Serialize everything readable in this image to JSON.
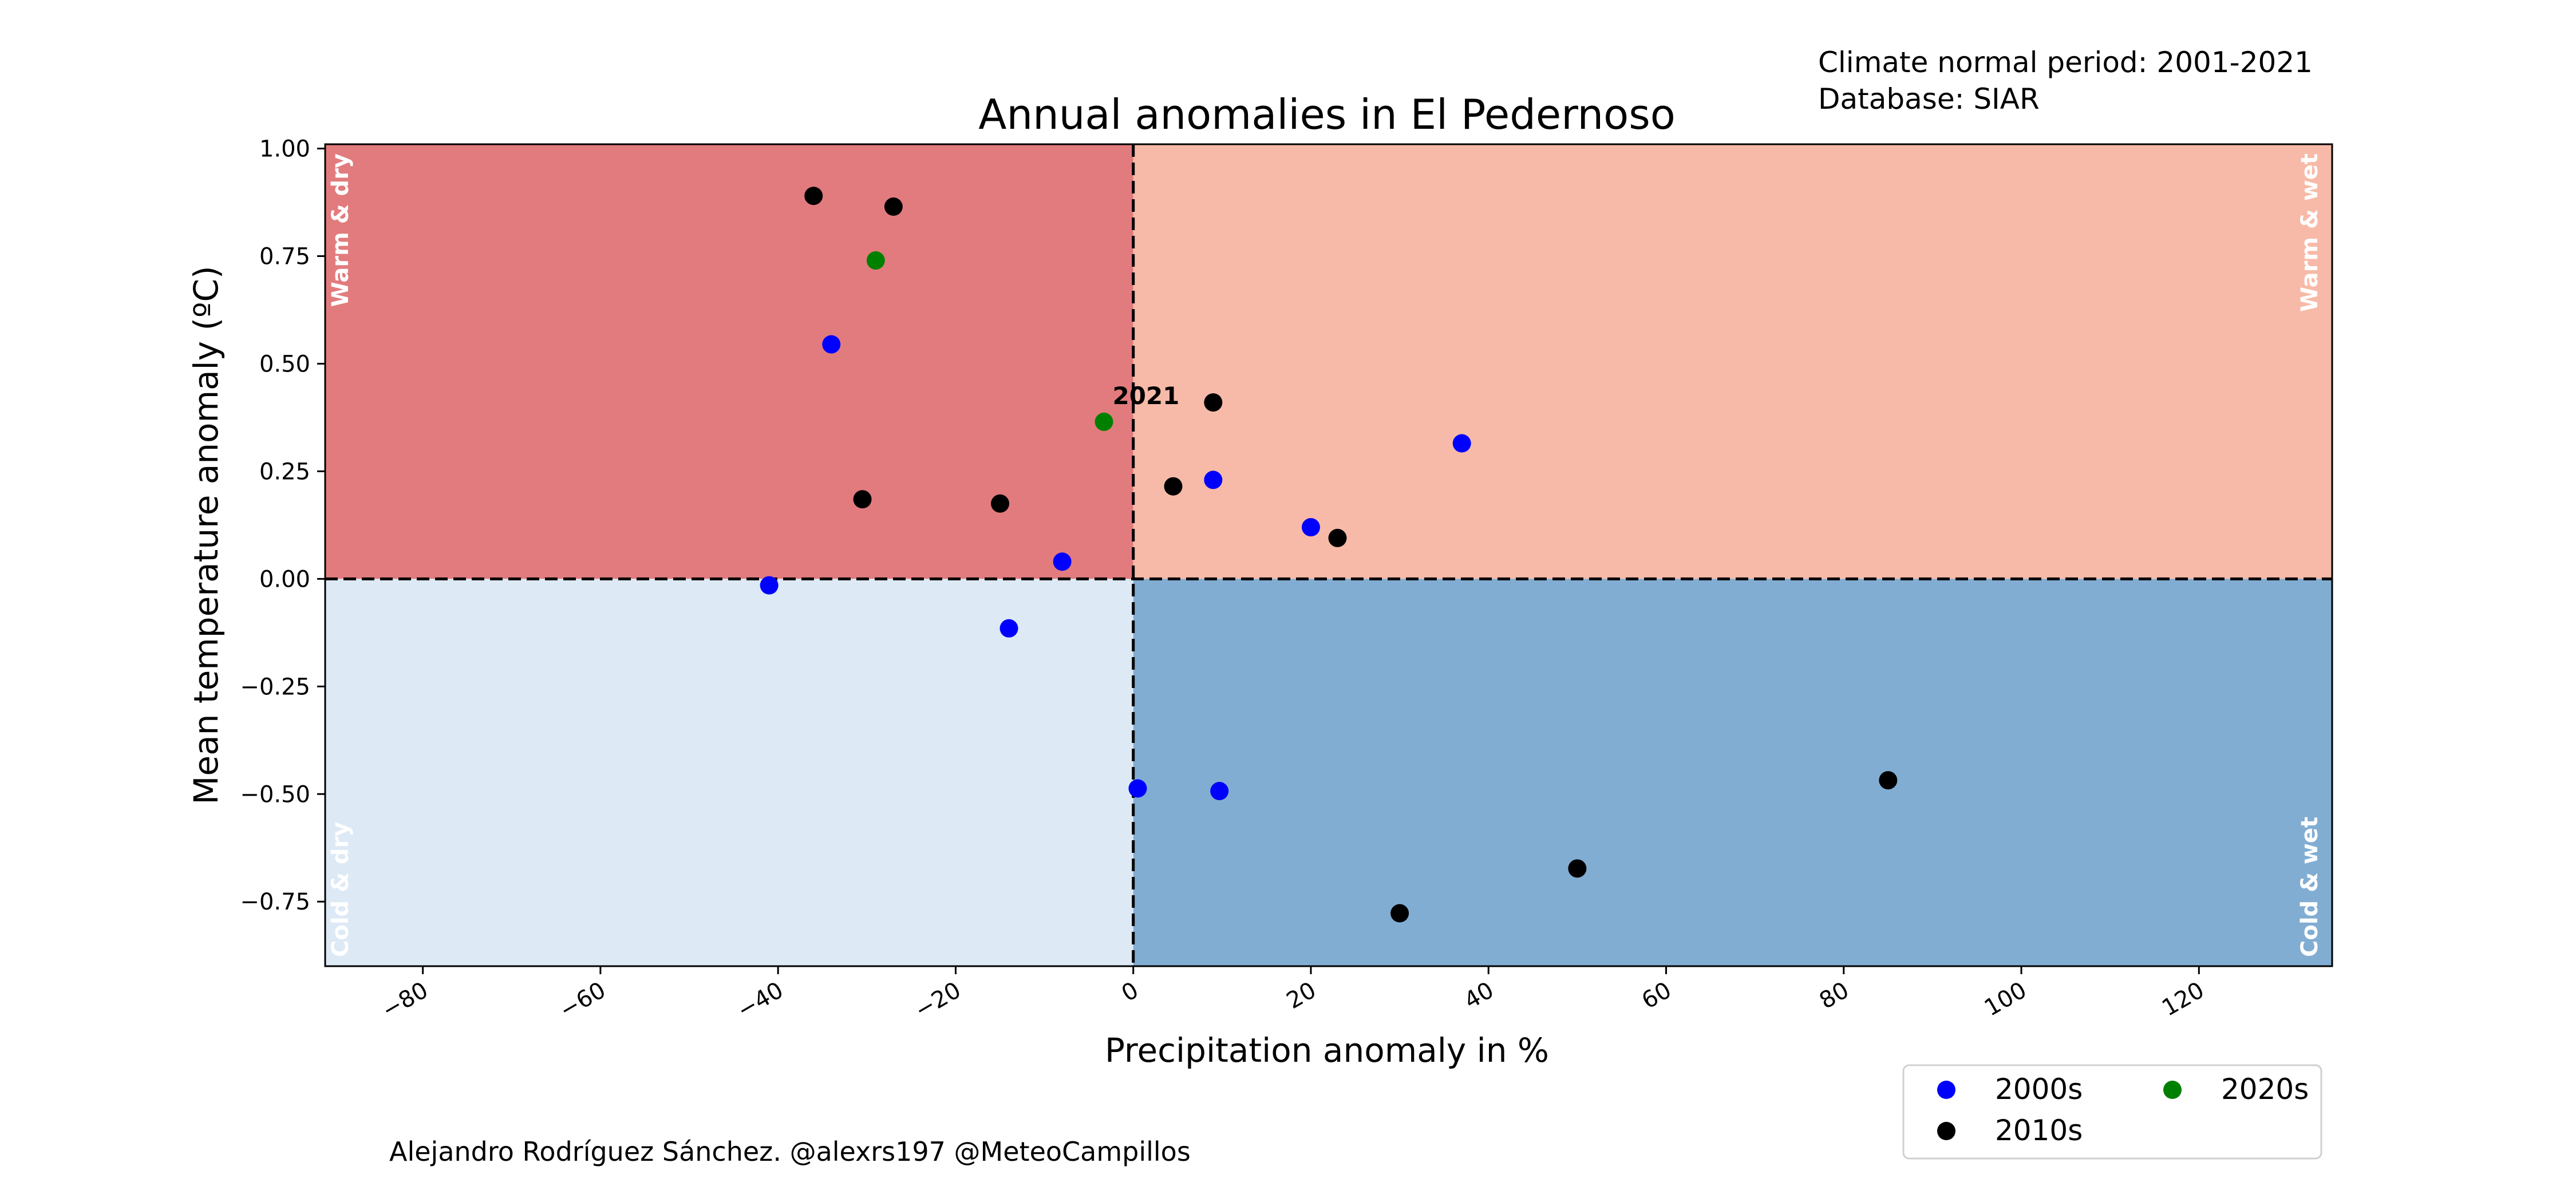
{
  "chart_data": {
    "type": "scatter",
    "title": "Annual anomalies in El Pedernoso",
    "xlabel": "Precipitation anomaly in %",
    "ylabel": "Mean temperature anomaly (ºC)",
    "xlim": [
      -91,
      135
    ],
    "ylim": [
      -0.9,
      1.01
    ],
    "xticks": [
      -80,
      -60,
      -40,
      -20,
      0,
      20,
      40,
      60,
      80,
      100,
      120
    ],
    "xtick_labels": [
      "−80",
      "−60",
      "−40",
      "−20",
      "0",
      "20",
      "40",
      "60",
      "80",
      "100",
      "120"
    ],
    "yticks": [
      -0.75,
      -0.5,
      -0.25,
      0.0,
      0.25,
      0.5,
      0.75,
      1.0
    ],
    "ytick_labels": [
      "−0.75",
      "−0.50",
      "−0.25",
      "0.00",
      "0.25",
      "0.50",
      "0.75",
      "1.00"
    ],
    "grid": false,
    "legend_position": "below-right",
    "quadrants": [
      {
        "label": "Warm & dry",
        "color": "#e27b7d"
      },
      {
        "label": "Warm & wet",
        "color": "#f7baa8"
      },
      {
        "label": "Cold & dry",
        "color": "#dde9f5"
      },
      {
        "label": "Cold & wet",
        "color": "#82add3"
      }
    ],
    "series": [
      {
        "name": "2000s",
        "color": "#0000ff",
        "x": [
          -34,
          37,
          -8,
          20,
          9,
          -14,
          -41,
          0.5,
          9.7
        ],
        "y": [
          0.545,
          0.315,
          0.04,
          0.12,
          0.23,
          -0.115,
          -0.015,
          -0.487,
          -0.493
        ]
      },
      {
        "name": "2010s",
        "color": "#000000",
        "x": [
          -36,
          -27,
          9,
          4.5,
          -30.5,
          -15,
          23,
          85,
          50,
          30
        ],
        "y": [
          0.89,
          0.865,
          0.41,
          0.215,
          0.185,
          0.175,
          0.095,
          -0.468,
          -0.673,
          -0.777
        ]
      },
      {
        "name": "2020s",
        "color": "#008000",
        "x": [
          -29,
          -3.3
        ],
        "y": [
          0.74,
          0.365
        ]
      }
    ],
    "annotations": [
      {
        "text": "2021",
        "x": -3.3,
        "y": 0.365
      }
    ]
  },
  "notes": {
    "period": "Climate normal period: 2001-2021",
    "database": "Database: SIAR"
  },
  "credit": "Alejandro Rodríguez Sánchez. @alexrs197 @MeteoCampillos"
}
